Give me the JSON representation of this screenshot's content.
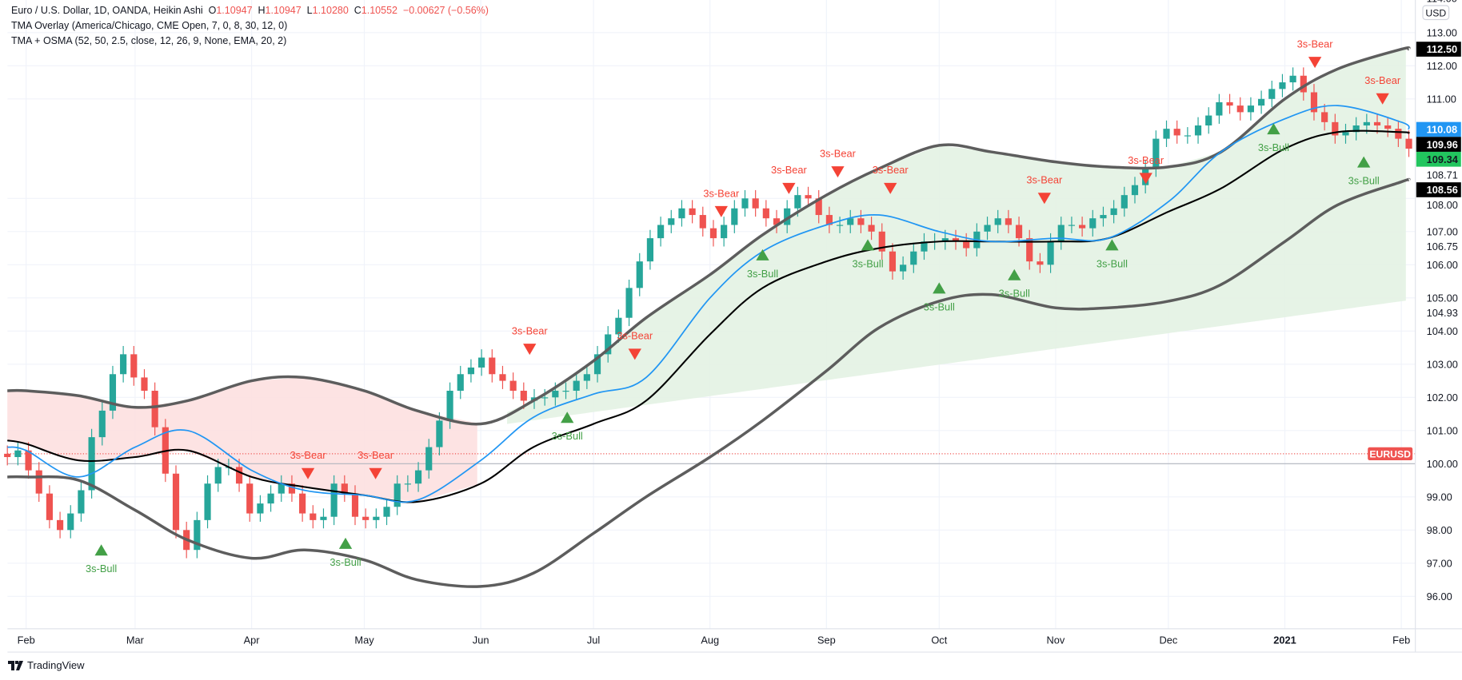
{
  "legend": {
    "symbol": "Euro / U.S. Dollar, 1D, OANDA, Heikin Ashi",
    "o_label": "O",
    "o": "1.10947",
    "h_label": "H",
    "h": "1.10947",
    "l_label": "L",
    "l": "1.10280",
    "c_label": "C",
    "c": "1.10552",
    "change": "−0.00627 (−0.56%)",
    "indicator1": "TMA Overlay (America/Chicago, CME Open, 7, 0, 8, 30, 12, 0)",
    "indicator2": "TMA + OSMA (52, 50, 2.5, close, 12, 26, 9, None, EMA, 20, 2)"
  },
  "currency_button": "USD",
  "branding": "TradingView",
  "colors": {
    "up": "#26a69a",
    "down": "#ef5350",
    "ema": "#2196f3",
    "mid": "#000000",
    "band": "#5d5d5d",
    "bear_fill": "#fde0e0",
    "bull_fill": "#e3f2e3",
    "bull_signal": "#43a047",
    "bear_signal": "#f44336"
  },
  "chart_data": {
    "type": "candlestick",
    "chart_style": "Heikin Ashi",
    "grid": true,
    "ylim": [
      95.5,
      114
    ],
    "xlim": [
      "2020-01-23",
      "2021-02-08"
    ],
    "y_ticks": [
      "96.00",
      "97.00",
      "98.00",
      "99.00",
      "100.00",
      "101.00",
      "102.00",
      "103.00",
      "104.00",
      "105.00",
      "106.00",
      "107.00",
      "108.00",
      "111.00",
      "112.00",
      "113.00",
      "114.00"
    ],
    "x_ticks": [
      {
        "date": "2020-02-01",
        "label": "Feb"
      },
      {
        "date": "2020-03-01",
        "label": "Mar"
      },
      {
        "date": "2020-04-01",
        "label": "Apr"
      },
      {
        "date": "2020-05-01",
        "label": "May"
      },
      {
        "date": "2020-06-01",
        "label": "Jun"
      },
      {
        "date": "2020-07-01",
        "label": "Jul"
      },
      {
        "date": "2020-08-01",
        "label": "Aug"
      },
      {
        "date": "2020-09-01",
        "label": "Sep"
      },
      {
        "date": "2020-10-01",
        "label": "Oct"
      },
      {
        "date": "2020-11-01",
        "label": "Nov"
      },
      {
        "date": "2020-12-01",
        "label": "Dec"
      },
      {
        "date": "2021-01-01",
        "label": "2021"
      },
      {
        "date": "2021-02-01",
        "label": "Feb"
      }
    ],
    "candles_start": "2020-01-27",
    "candles_end": "2021-02-03",
    "closes": [
      100.2,
      100.4,
      99.8,
      99.1,
      98.3,
      98.0,
      98.5,
      99.2,
      100.8,
      101.6,
      102.7,
      103.3,
      102.6,
      102.2,
      101.1,
      99.7,
      98.0,
      97.4,
      98.3,
      99.4,
      99.9,
      99.9,
      99.4,
      98.5,
      98.8,
      99.1,
      99.4,
      99.1,
      98.5,
      98.3,
      98.4,
      99.4,
      99.1,
      98.4,
      98.3,
      98.4,
      98.7,
      99.4,
      99.4,
      99.8,
      100.5,
      101.3,
      102.2,
      102.7,
      102.9,
      103.2,
      102.7,
      102.5,
      102.2,
      101.9,
      102.0,
      102.0,
      102.2,
      102.2,
      102.5,
      102.7,
      103.3,
      103.9,
      104.4,
      105.3,
      106.1,
      106.8,
      107.2,
      107.4,
      107.7,
      107.5,
      107.1,
      106.8,
      107.2,
      107.7,
      108.0,
      107.7,
      107.4,
      107.2,
      107.7,
      108.1,
      108.0,
      107.5,
      107.2,
      107.2,
      107.4,
      107.2,
      107.0,
      106.4,
      105.8,
      106.0,
      106.4,
      106.7,
      106.7,
      106.8,
      106.7,
      106.5,
      107.0,
      107.2,
      107.4,
      107.2,
      106.8,
      106.1,
      106.0,
      106.7,
      107.2,
      107.2,
      107.1,
      107.4,
      107.5,
      107.7,
      108.1,
      108.4,
      108.9,
      109.8,
      110.1,
      109.9,
      109.9,
      110.2,
      110.5,
      110.9,
      110.8,
      110.6,
      110.8,
      111.0,
      111.3,
      111.5,
      111.7,
      111.2,
      110.6,
      110.3,
      109.9,
      110.0,
      110.2,
      110.3,
      110.2,
      110.1,
      109.8,
      109.5
    ],
    "line_dates": [
      "2020-01-27",
      "2020-02-01",
      "2020-02-15",
      "2020-03-01",
      "2020-03-15",
      "2020-04-01",
      "2020-04-15",
      "2020-05-01",
      "2020-05-15",
      "2020-06-01",
      "2020-06-15",
      "2020-07-01",
      "2020-07-15",
      "2020-08-01",
      "2020-08-15",
      "2020-09-01",
      "2020-09-15",
      "2020-10-01",
      "2020-10-15",
      "2020-11-01",
      "2020-11-15",
      "2020-12-01",
      "2020-12-15",
      "2021-01-01",
      "2021-01-15",
      "2021-02-01",
      "2021-02-03"
    ],
    "upper_band": [
      102.2,
      102.2,
      102.05,
      101.7,
      101.9,
      102.5,
      102.6,
      102.2,
      101.6,
      101.2,
      101.9,
      103.1,
      104.4,
      105.7,
      106.9,
      108.1,
      108.9,
      109.6,
      109.4,
      109.1,
      108.95,
      108.95,
      109.4,
      111.0,
      111.9,
      112.5,
      112.5
    ],
    "lower_band": [
      99.6,
      99.6,
      99.5,
      98.6,
      97.7,
      97.15,
      97.4,
      97.1,
      96.5,
      96.3,
      96.7,
      97.9,
      99.0,
      100.2,
      101.3,
      102.8,
      104.1,
      104.9,
      105.1,
      104.7,
      104.7,
      104.9,
      105.4,
      106.7,
      107.8,
      108.5,
      108.56
    ],
    "mid_line": [
      100.7,
      100.6,
      100.1,
      100.2,
      100.4,
      99.6,
      99.3,
      99.05,
      98.85,
      99.4,
      100.5,
      101.2,
      101.9,
      103.9,
      105.3,
      106.1,
      106.5,
      106.7,
      106.7,
      106.7,
      106.8,
      107.6,
      108.3,
      109.5,
      110.0,
      110.0,
      109.96
    ],
    "ema_line": [
      100.5,
      100.4,
      99.6,
      100.5,
      101.0,
      99.8,
      99.2,
      99.05,
      98.9,
      100.1,
      101.4,
      102.1,
      102.6,
      105.0,
      106.4,
      107.2,
      107.5,
      107.0,
      106.7,
      106.8,
      106.8,
      107.9,
      109.4,
      110.4,
      110.8,
      110.3,
      110.08
    ],
    "bull_fill_lower": [
      [
        "2020-06-08",
        101.2
      ],
      [
        "2021-02-03",
        104.93
      ]
    ],
    "bear_fill_until": "2020-06-01",
    "signals": [
      {
        "type": "bear",
        "label": "3s-Bear",
        "date": "2020-04-16",
        "price": 99.7
      },
      {
        "type": "bear",
        "label": "3s-Bear",
        "date": "2020-05-04",
        "price": 99.7
      },
      {
        "type": "bear",
        "label": "3s-Bear",
        "date": "2020-06-14",
        "price": 103.45
      },
      {
        "type": "bear",
        "label": "3s-Bear",
        "date": "2020-07-12",
        "price": 103.3
      },
      {
        "type": "bear",
        "label": "3s-Bear",
        "date": "2020-08-04",
        "price": 107.6
      },
      {
        "type": "bear",
        "label": "3s-Bear",
        "date": "2020-08-22",
        "price": 108.3
      },
      {
        "type": "bear",
        "label": "3s-Bear",
        "date": "2020-09-04",
        "price": 108.8
      },
      {
        "type": "bear",
        "label": "3s-Bear",
        "date": "2020-09-18",
        "price": 108.3
      },
      {
        "type": "bear",
        "label": "3s-Bear",
        "date": "2020-10-29",
        "price": 108.0
      },
      {
        "type": "bear",
        "label": "3s-Bear",
        "date": "2020-11-25",
        "price": 108.6
      },
      {
        "type": "bear",
        "label": "3s-Bear",
        "date": "2021-01-09",
        "price": 112.1
      },
      {
        "type": "bear",
        "label": "3s-Bear",
        "date": "2021-01-27",
        "price": 111.0
      },
      {
        "type": "bull",
        "label": "3s-Bull",
        "date": "2020-02-21",
        "price": 97.4
      },
      {
        "type": "bull",
        "label": "3s-Bull",
        "date": "2020-04-26",
        "price": 97.6
      },
      {
        "type": "bull",
        "label": "3s-Bull",
        "date": "2020-06-24",
        "price": 101.4
      },
      {
        "type": "bull",
        "label": "3s-Bull",
        "date": "2020-08-15",
        "price": 106.3
      },
      {
        "type": "bull",
        "label": "3s-Bull",
        "date": "2020-09-12",
        "price": 106.6
      },
      {
        "type": "bull",
        "label": "3s-Bull",
        "date": "2020-10-01",
        "price": 105.3
      },
      {
        "type": "bull",
        "label": "3s-Bull",
        "date": "2020-10-21",
        "price": 105.7
      },
      {
        "type": "bull",
        "label": "3s-Bull",
        "date": "2020-11-16",
        "price": 106.6
      },
      {
        "type": "bull",
        "label": "3s-Bull",
        "date": "2020-12-29",
        "price": 110.1
      },
      {
        "type": "bull",
        "label": "3s-Bull",
        "date": "2021-01-22",
        "price": 109.1
      }
    ],
    "reference_line": 100.0,
    "symbol_line": {
      "label": "EURUSD",
      "price": 100.3,
      "color": "#ef5350"
    },
    "price_labels": [
      {
        "text": "112.50",
        "price": 112.5,
        "bg": "#000000",
        "fg": "#ffffff"
      },
      {
        "text": "110.08",
        "price": 110.08,
        "bg": "#2196f3",
        "fg": "#ffffff"
      },
      {
        "text": "109.96",
        "price": 109.96,
        "bg": "#000000",
        "fg": "#ffffff"
      },
      {
        "text": "109.34",
        "price": 109.34,
        "bg": "#22c55e",
        "fg": "#131722"
      },
      {
        "text": "108.71",
        "price": 108.71,
        "bg": "",
        "fg": "#131722"
      },
      {
        "text": "108.56",
        "price": 108.56,
        "bg": "#000000",
        "fg": "#ffffff"
      },
      {
        "text": "106.75",
        "price": 106.75,
        "bg": "",
        "fg": "#131722"
      },
      {
        "text": "104.93",
        "price": 104.93,
        "bg": "",
        "fg": "#131722"
      }
    ]
  }
}
